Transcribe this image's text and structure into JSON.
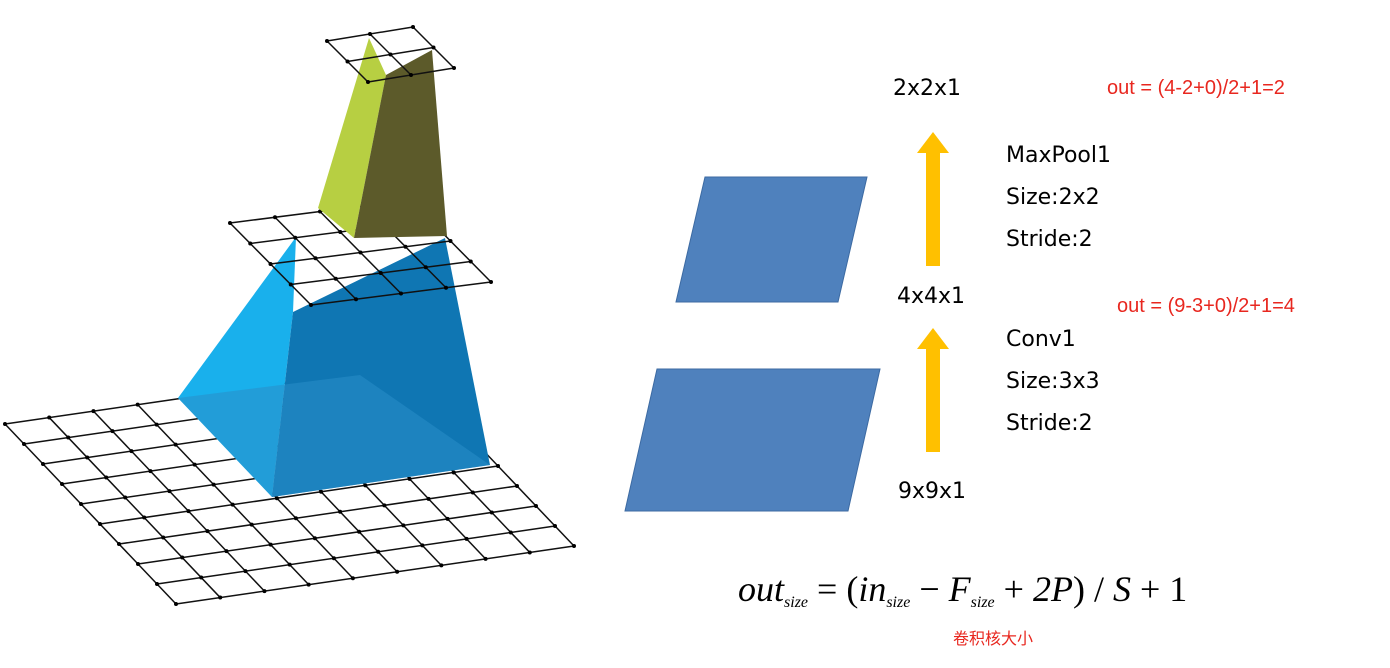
{
  "layers": {
    "top_dim": "2x2x1",
    "mid_dim": "4x4x1",
    "bottom_dim": "9x9x1"
  },
  "pool": {
    "name": "MaxPool1",
    "size": "Size:2x2",
    "stride": "Stride:2",
    "calc": "out = (4-2+0)/2+1=2"
  },
  "conv": {
    "name": "Conv1",
    "size": "Size:3x3",
    "stride": "Stride:2",
    "calc": "out = (9-3+0)/2+1=4"
  },
  "formula": {
    "out": "out",
    "size_sub": "size",
    "in": "in",
    "f": "F",
    "two_p": "2P",
    "s": "S",
    "one": "1",
    "note": "卷积核大小"
  },
  "colors": {
    "arrow": "#ffc000",
    "slab": "#4f81bd",
    "pyramid_left": "#1aaee8",
    "pyramid_right": "#0e6ea8",
    "pool_left": "#b4cc3e",
    "pool_right": "#5a5a28",
    "annotation": "#e8271f"
  }
}
